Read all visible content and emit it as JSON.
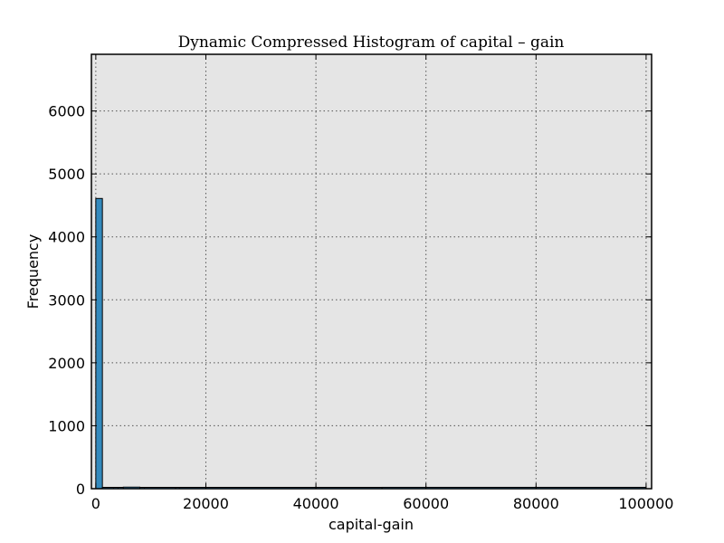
{
  "chart_data": {
    "type": "bar",
    "title": "Dynamic Compressed Histogram of capital – gain",
    "xlabel": "capital-gain",
    "ylabel": "Frequency",
    "xlim": [
      -800,
      101000
    ],
    "ylim": [
      0,
      6900
    ],
    "xticks": [
      0,
      20000,
      40000,
      60000,
      80000,
      100000
    ],
    "yticks": [
      0,
      1000,
      2000,
      3000,
      4000,
      5000,
      6000
    ],
    "xtick_labels": [
      "0",
      "20000",
      "40000",
      "60000",
      "80000",
      "100000"
    ],
    "ytick_labels": [
      "0",
      "1000",
      "2000",
      "3000",
      "4000",
      "5000",
      "6000"
    ],
    "grid": true,
    "bar_color": "#348ABD",
    "background_color": "#E5E5E5",
    "bins": [
      {
        "x0": 0,
        "x1": 1200,
        "value": 4610
      },
      {
        "x0": 1200,
        "x1": 3300,
        "value": 3
      },
      {
        "x0": 3300,
        "x1": 4100,
        "value": 12
      },
      {
        "x0": 4100,
        "x1": 5000,
        "value": 8
      },
      {
        "x0": 5000,
        "x1": 8000,
        "value": 25
      },
      {
        "x0": 8000,
        "x1": 8900,
        "value": 20
      },
      {
        "x0": 8900,
        "x1": 14500,
        "value": 6
      },
      {
        "x0": 14500,
        "x1": 15200,
        "value": 12
      },
      {
        "x0": 15200,
        "x1": 52000,
        "value": 4
      },
      {
        "x0": 52000,
        "x1": 100000,
        "value": 22
      }
    ]
  }
}
